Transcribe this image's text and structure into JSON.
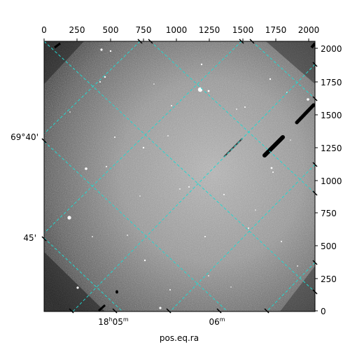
{
  "figure": {
    "xlabel": "pos.eq.ra",
    "top_ticks": [
      "0",
      "250",
      "500",
      "750",
      "1000",
      "1250",
      "1500",
      "1750",
      "2000"
    ],
    "right_ticks": [
      "2000",
      "1750",
      "1500",
      "1250",
      "1000",
      "750",
      "500",
      "250",
      "0"
    ],
    "ra_ticks": [
      {
        "h": "18",
        "m": "05",
        "major": true
      },
      {
        "m": "06",
        "major": false
      }
    ],
    "dec_ticks": [
      "69°40'",
      "45'"
    ],
    "grid_color": "#22d8d0",
    "image_description": "grayscale astronomical star field with coordinate grid overlay"
  }
}
